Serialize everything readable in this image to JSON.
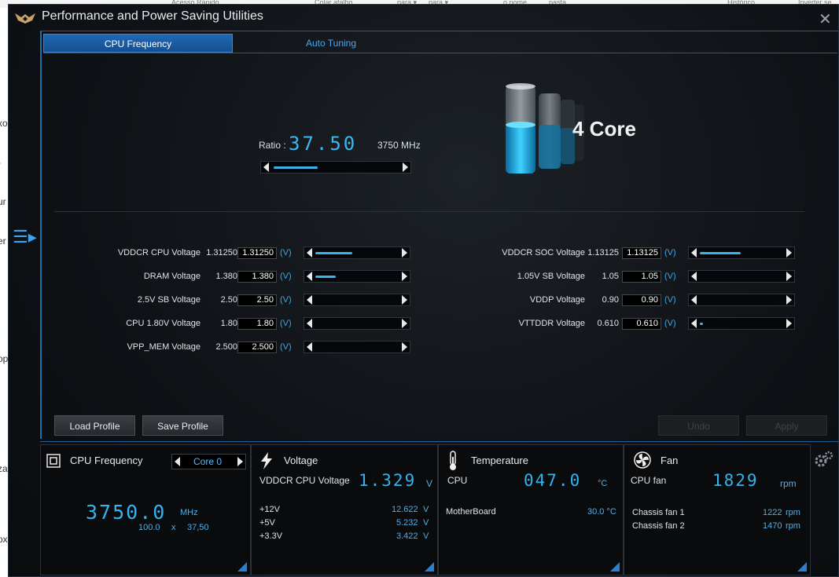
{
  "background": {
    "top_strip": [
      "Acesso Rápido",
      "Colar atalho",
      "para ▾",
      "para ▾",
      "o nome",
      "pasta",
      "Histórico",
      "Inverter se"
    ],
    "left_fragments": [
      "xo",
      "-",
      "ur",
      "er",
      "op",
      "za",
      "ox"
    ]
  },
  "window": {
    "title": "Performance and Power Saving Utilities",
    "close_symbol": "✕",
    "menu_symbol": "☰▸"
  },
  "tabs": [
    {
      "label": "CPU Frequency",
      "active": true
    },
    {
      "label": "Auto Tuning",
      "active": false
    }
  ],
  "ratio": {
    "label": "Ratio :",
    "value": "37.50",
    "mhz": "3750 MHz",
    "slider_level": 0.35
  },
  "core": {
    "label": "4 Core"
  },
  "voltages_left": [
    {
      "label": "VDDCR CPU Voltage",
      "current": "1.31250",
      "input": "1.31250",
      "unit": "(V)",
      "level": 0.45
    },
    {
      "label": "DRAM Voltage",
      "current": "1.380",
      "input": "1.380",
      "unit": "(V)",
      "level": 0.25
    },
    {
      "label": "2.5V SB Voltage",
      "current": "2.50",
      "input": "2.50",
      "unit": "(V)",
      "level": 0
    },
    {
      "label": "CPU 1.80V Voltage",
      "current": "1.80",
      "input": "1.80",
      "unit": "(V)",
      "level": 0
    },
    {
      "label": "VPP_MEM Voltage",
      "current": "2.500",
      "input": "2.500",
      "unit": "(V)",
      "level": 0
    }
  ],
  "voltages_right": [
    {
      "label": "VDDCR SOC Voltage",
      "current": "1.13125",
      "input": "1.13125",
      "unit": "(V)",
      "level": 0.5
    },
    {
      "label": "1.05V SB Voltage",
      "current": "1.05",
      "input": "1.05",
      "unit": "(V)",
      "level": 0
    },
    {
      "label": "VDDP Voltage",
      "current": "0.90",
      "input": "0.90",
      "unit": "(V)",
      "level": 0
    },
    {
      "label": "VTTDDR Voltage",
      "current": "0.610",
      "input": "0.610",
      "unit": "(V)",
      "level": 0.02
    }
  ],
  "buttons": {
    "load": "Load Profile",
    "save": "Save Profile",
    "undo": "Undo",
    "apply": "Apply"
  },
  "monitor": {
    "cpu": {
      "title": "CPU Frequency",
      "core_select": "Core 0",
      "value": "3750.0",
      "unit": "MHz",
      "base": "100.0",
      "x": "x",
      "ratio": "37,50"
    },
    "voltage": {
      "title": "Voltage",
      "main_label": "VDDCR CPU Voltage",
      "main_value": "1.329",
      "main_unit": "V",
      "rows": [
        {
          "label": "+12V",
          "value": "12.622",
          "unit": "V"
        },
        {
          "label": "+5V",
          "value": "5.232",
          "unit": "V"
        },
        {
          "label": "+3.3V",
          "value": "3.422",
          "unit": "V"
        }
      ]
    },
    "temperature": {
      "title": "Temperature",
      "main_label": "CPU",
      "main_value": "047.0",
      "main_unit": "°C",
      "rows": [
        {
          "label": "MotherBoard",
          "value": "30.0 °C"
        }
      ]
    },
    "fan": {
      "title": "Fan",
      "main_label": "CPU fan",
      "main_value": "1829",
      "main_unit": "rpm",
      "rows": [
        {
          "label": "Chassis fan 1",
          "value": "1222",
          "unit": "rpm"
        },
        {
          "label": "Chassis fan 2",
          "value": "1470",
          "unit": "rpm"
        }
      ]
    }
  },
  "colors": {
    "accent": "#3ab4ea",
    "tab_active": "#1f68b6",
    "background": "#0f1216"
  }
}
